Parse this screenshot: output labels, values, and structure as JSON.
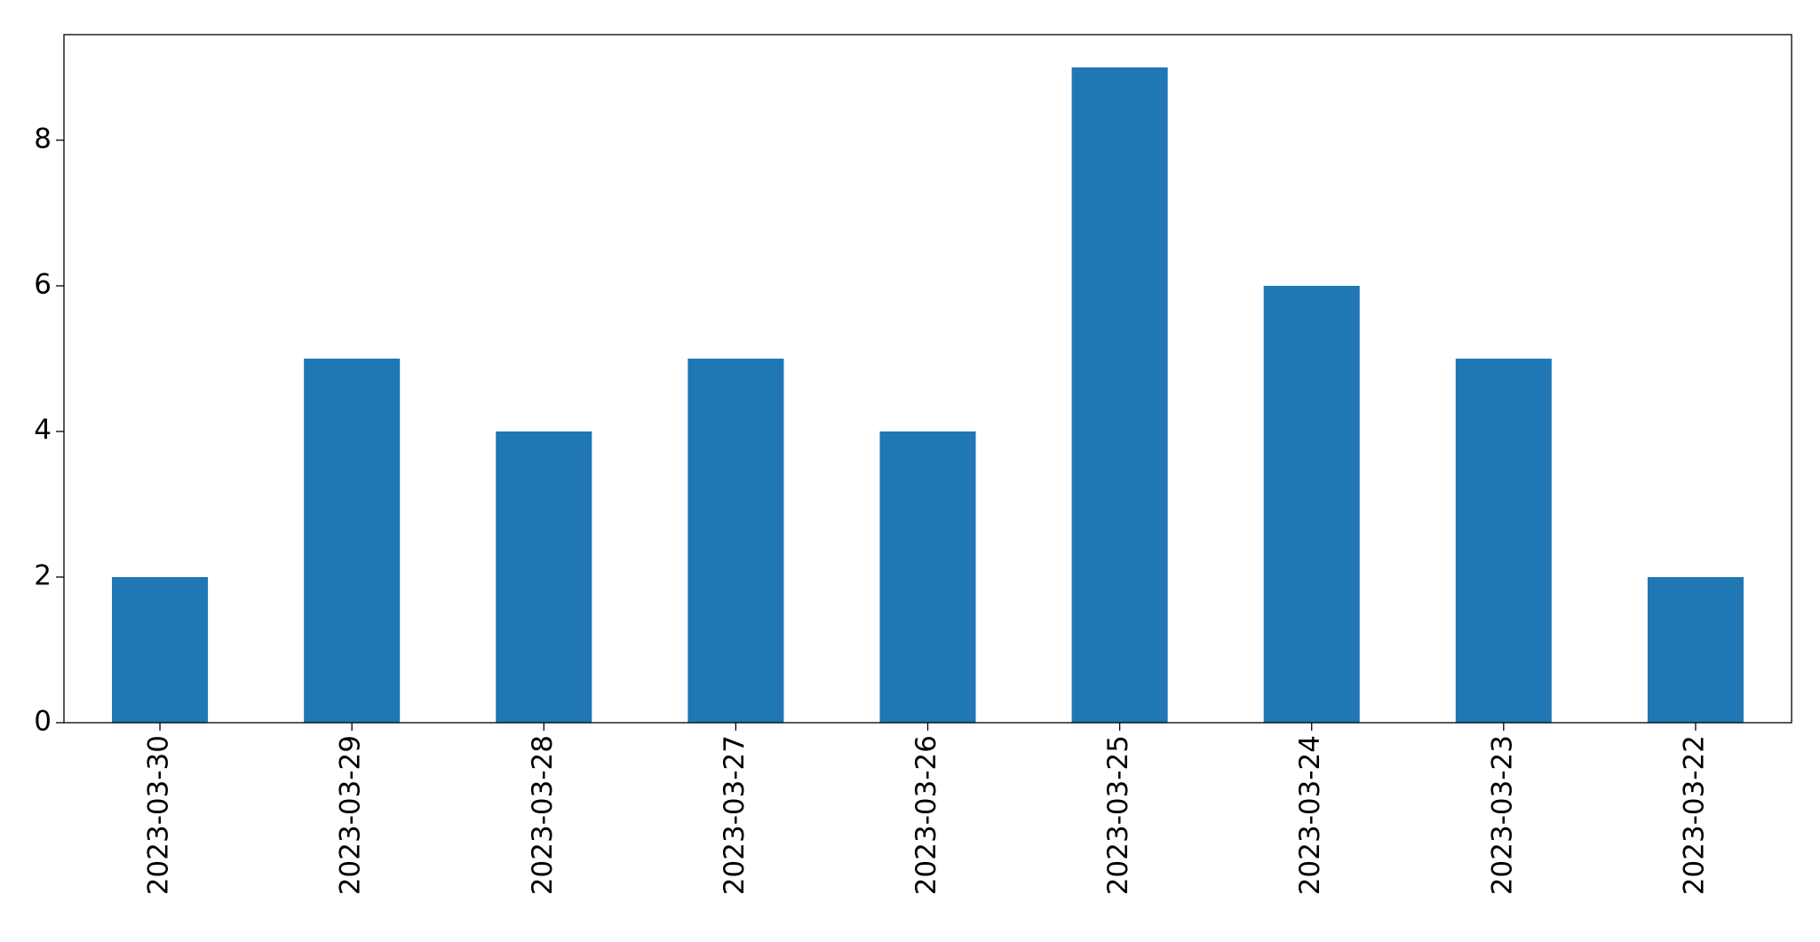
{
  "chart_data": {
    "type": "bar",
    "categories": [
      "2023-03-30",
      "2023-03-29",
      "2023-03-28",
      "2023-03-27",
      "2023-03-26",
      "2023-03-25",
      "2023-03-24",
      "2023-03-23",
      "2023-03-22"
    ],
    "values": [
      2,
      5,
      4,
      5,
      4,
      9,
      6,
      5,
      2
    ],
    "color": "#1f77b4",
    "ylim": [
      0,
      9.45
    ],
    "yticks": [
      0,
      2,
      4,
      6,
      8
    ],
    "grid": false
  }
}
